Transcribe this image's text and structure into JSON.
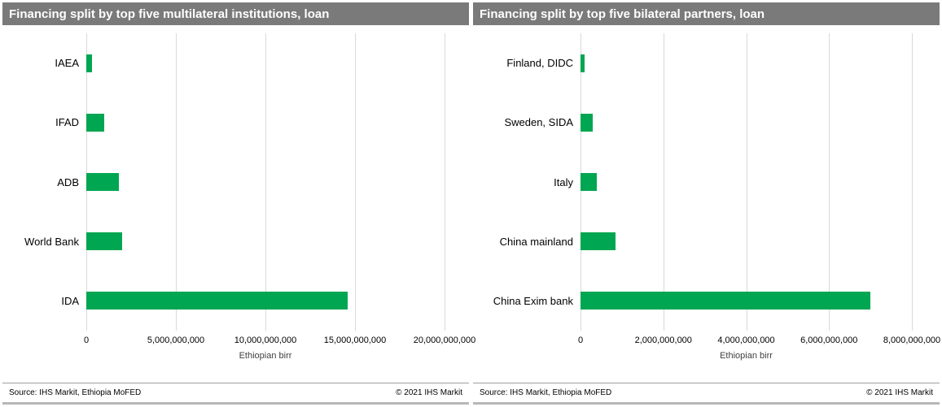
{
  "panels": [
    {
      "title": "Financing split by top five multilateral institutions, loan",
      "footer": {
        "source": "Source: IHS Markit, Ethiopia MoFED",
        "copyright": "© 2021  IHS Markit"
      }
    },
    {
      "title": "Financing split by top five bilateral partners, loan",
      "footer": {
        "source": "Source: IHS Markit, Ethiopia MoFED",
        "copyright": "© 2021  IHS Markit"
      }
    }
  ],
  "chart_data": [
    {
      "type": "bar",
      "orientation": "horizontal",
      "title": "Financing split by top five multilateral institutions, loan",
      "categories": [
        "IAEA",
        "IFAD",
        "ADB",
        "World Bank",
        "IDA"
      ],
      "values": [
        300000000,
        1000000000,
        1800000000,
        2000000000,
        14600000000
      ],
      "xlabel": "Ethiopian birr",
      "xlim": [
        0,
        20000000000
      ],
      "xticks": [
        0,
        5000000000,
        10000000000,
        15000000000,
        20000000000
      ],
      "xtick_labels": [
        "0",
        "5,000,000,000",
        "10,000,000,000",
        "15,000,000,000",
        "20,000,000,000"
      ],
      "bar_color": "#00a651",
      "grid": true,
      "legend": "none"
    },
    {
      "type": "bar",
      "orientation": "horizontal",
      "title": "Financing split by top five bilateral partners, loan",
      "categories": [
        "Finland, DIDC",
        "Sweden, SIDA",
        "Italy",
        "China mainland",
        "China Exim bank"
      ],
      "values": [
        100000000,
        300000000,
        400000000,
        850000000,
        7000000000
      ],
      "xlabel": "Ethiopian birr",
      "xlim": [
        0,
        8000000000
      ],
      "xticks": [
        0,
        2000000000,
        4000000000,
        6000000000,
        8000000000
      ],
      "xtick_labels": [
        "0",
        "2,000,000,000",
        "4,000,000,000",
        "6,000,000,000",
        "8,000,000,000"
      ],
      "bar_color": "#00a651",
      "grid": true,
      "legend": "none"
    }
  ]
}
